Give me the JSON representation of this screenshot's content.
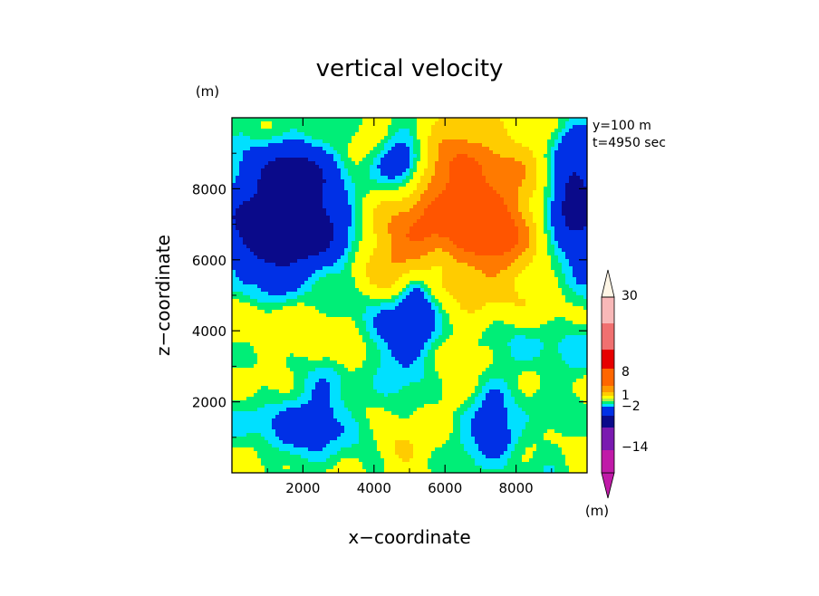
{
  "chart_data": {
    "type": "heatmap",
    "title": "vertical velocity",
    "xlabel": "x−coordinate",
    "ylabel": "z−coordinate",
    "y_unit": "(m)",
    "colorbar_unit": "(m)",
    "annotations": [
      "y=100 m",
      "t=4950 sec"
    ],
    "xlim": [
      0,
      10000
    ],
    "ylim": [
      0,
      10000
    ],
    "x_ticks": [
      2000,
      4000,
      6000,
      8000
    ],
    "y_ticks": [
      2000,
      4000,
      6000,
      8000
    ],
    "x_tick_labels": [
      "2000",
      "4000",
      "6000",
      "8000"
    ],
    "y_tick_labels": [
      "2000",
      "4000",
      "6000",
      "8000"
    ],
    "colorbar": {
      "tick_labels": [
        "30",
        "8",
        "1",
        "−2",
        "−14"
      ],
      "tick_values": [
        30,
        8,
        1,
        -2,
        -14
      ],
      "colors": [
        "#c01aa8",
        "#7a1ab0",
        "#0a0a8a",
        "#0030e6",
        "#00e0ff",
        "#00ee77",
        "#b0f040",
        "#ffff00",
        "#ffcc00",
        "#ff9900",
        "#ff6600",
        "#e60000",
        "#f07070",
        "#f8b8b8",
        "#fff6e6"
      ]
    },
    "contour_levels": [
      -14,
      -5,
      -2,
      -1,
      0,
      1,
      2,
      4,
      6,
      8
    ],
    "contour_colors": [
      "#00e0ff",
      "#00e0ff",
      "#00ee77",
      "#ffff00",
      "#ffcc00",
      "#ff7a00"
    ],
    "field_features": [
      {
        "x": 1600,
        "z": 7200,
        "w": -7,
        "sx": 900,
        "sy": 1200
      },
      {
        "x": 600,
        "z": 6800,
        "w": -4,
        "sx": 700,
        "sy": 900
      },
      {
        "x": 2900,
        "z": 6800,
        "w": -3,
        "sx": 700,
        "sy": 1000
      },
      {
        "x": 1600,
        "z": 8500,
        "w": -3,
        "sx": 600,
        "sy": 600
      },
      {
        "x": 4800,
        "z": 8800,
        "w": -5,
        "sx": 500,
        "sy": 500
      },
      {
        "x": 9700,
        "z": 7600,
        "w": -7,
        "sx": 500,
        "sy": 1300
      },
      {
        "x": 5100,
        "z": 4300,
        "w": -3,
        "sx": 500,
        "sy": 900
      },
      {
        "x": 5200,
        "z": 5000,
        "w": -3,
        "sx": 300,
        "sy": 500
      },
      {
        "x": 4300,
        "z": 3800,
        "w": -2.5,
        "sx": 500,
        "sy": 700
      },
      {
        "x": 5800,
        "z": 5800,
        "w": -2,
        "sx": 300,
        "sy": 400
      },
      {
        "x": 6700,
        "z": 7800,
        "w": 7,
        "sx": 1200,
        "sy": 1600
      },
      {
        "x": 5200,
        "z": 6200,
        "w": 3,
        "sx": 1000,
        "sy": 900
      },
      {
        "x": 7600,
        "z": 6600,
        "w": 3,
        "sx": 600,
        "sy": 600
      },
      {
        "x": 4200,
        "z": 6800,
        "w": 2,
        "sx": 600,
        "sy": 700
      },
      {
        "x": 3800,
        "z": 5800,
        "w": 1.5,
        "sx": 600,
        "sy": 500
      },
      {
        "x": 8200,
        "z": 5000,
        "w": 1.5,
        "sx": 600,
        "sy": 900
      },
      {
        "x": 4700,
        "z": 700,
        "w": 3,
        "sx": 450,
        "sy": 400
      },
      {
        "x": 3300,
        "z": 3400,
        "w": 2,
        "sx": 300,
        "sy": 400
      },
      {
        "x": 6500,
        "z": 2300,
        "w": 1.5,
        "sx": 400,
        "sy": 400
      },
      {
        "x": 700,
        "z": 4300,
        "w": 1.5,
        "sx": 500,
        "sy": 400
      },
      {
        "x": 800,
        "z": 2600,
        "w": 1.2,
        "sx": 700,
        "sy": 500
      },
      {
        "x": 2200,
        "z": 4300,
        "w": 1.2,
        "sx": 900,
        "sy": 600
      },
      {
        "x": 2600,
        "z": 1500,
        "w": -2.5,
        "sx": 800,
        "sy": 800
      },
      {
        "x": 1200,
        "z": 1600,
        "w": -2,
        "sx": 600,
        "sy": 700
      },
      {
        "x": 7300,
        "z": 1500,
        "w": -2,
        "sx": 700,
        "sy": 700
      },
      {
        "x": 8700,
        "z": 3500,
        "w": -1.5,
        "sx": 800,
        "sy": 700
      },
      {
        "x": 7500,
        "z": 900,
        "w": -2.5,
        "sx": 400,
        "sy": 400
      }
    ]
  }
}
